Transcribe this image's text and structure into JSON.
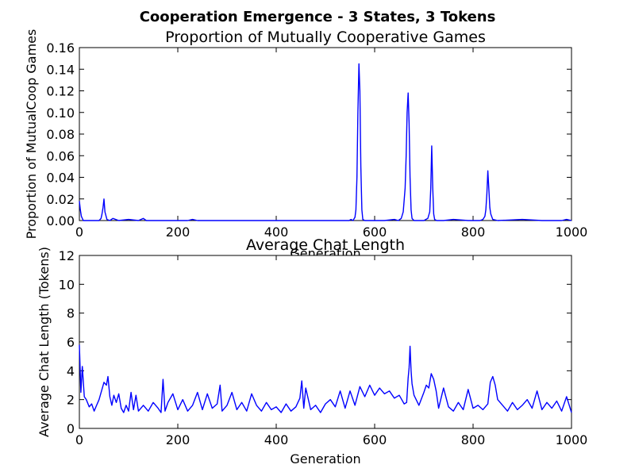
{
  "suptitle": "Cooperation Emergence - 3 States, 3 Tokens",
  "chart_data": [
    {
      "type": "line",
      "title": "Proportion of Mutually Cooperative Games",
      "xlabel": "Generation",
      "ylabel": "Proportion of MutualCoop Games",
      "xlim": [
        0,
        1000
      ],
      "ylim": [
        0,
        0.16
      ],
      "xticks": [
        "0",
        "200",
        "400",
        "600",
        "800",
        "1000"
      ],
      "yticks": [
        "0.00",
        "0.02",
        "0.04",
        "0.06",
        "0.08",
        "0.10",
        "0.12",
        "0.14",
        "0.16"
      ],
      "grid": false,
      "color": "#0000ff",
      "series": [
        {
          "x": [
            0,
            2,
            4,
            6,
            8,
            10,
            20,
            40,
            44,
            46,
            48,
            50,
            52,
            56,
            62,
            68,
            80,
            100,
            120,
            130,
            136,
            150,
            180,
            200,
            220,
            230,
            240,
            300,
            330,
            400,
            500,
            540,
            548,
            552,
            556,
            560,
            562,
            564,
            566,
            568,
            570,
            572,
            574,
            576,
            580,
            600,
            620,
            640,
            648,
            654,
            658,
            662,
            664,
            666,
            668,
            670,
            672,
            674,
            676,
            680,
            690,
            700,
            704,
            708,
            712,
            714,
            716,
            718,
            720,
            722,
            726,
            740,
            760,
            790,
            800,
            814,
            820,
            824,
            826,
            828,
            830,
            832,
            834,
            836,
            840,
            850,
            900,
            940,
            960,
            980,
            990,
            1000
          ],
          "y": [
            0.018,
            0.01,
            0.004,
            0.002,
            0.0,
            0.0,
            0.0,
            0.0,
            0.002,
            0.006,
            0.012,
            0.02,
            0.008,
            0.001,
            0.0,
            0.002,
            0.0,
            0.001,
            0.0,
            0.002,
            0.0,
            0.0,
            0.0,
            0.0,
            0.0,
            0.001,
            0.0,
            0.0,
            0.0,
            0.0,
            0.0,
            0.0,
            0.0,
            0.001,
            0.0,
            0.003,
            0.01,
            0.04,
            0.1,
            0.145,
            0.12,
            0.05,
            0.01,
            0.001,
            0.0,
            0.0,
            0.0,
            0.001,
            0.0,
            0.002,
            0.008,
            0.03,
            0.06,
            0.1,
            0.118,
            0.09,
            0.04,
            0.01,
            0.002,
            0.0,
            0.0,
            0.0,
            0.001,
            0.002,
            0.008,
            0.03,
            0.069,
            0.03,
            0.006,
            0.001,
            0.0,
            0.0,
            0.001,
            0.0,
            0.0,
            0.0,
            0.001,
            0.004,
            0.01,
            0.025,
            0.046,
            0.03,
            0.012,
            0.006,
            0.001,
            0.0,
            0.001,
            0.0,
            0.0,
            0.0,
            0.001,
            0.0
          ]
        }
      ]
    },
    {
      "type": "line",
      "title": "Average Chat Length",
      "xlabel": "Generation",
      "ylabel": "Average Chat Length (Tokens)",
      "xlim": [
        0,
        1000
      ],
      "ylim": [
        0,
        12
      ],
      "xticks": [
        "0",
        "200",
        "400",
        "600",
        "800",
        "1000"
      ],
      "yticks": [
        "0",
        "2",
        "4",
        "6",
        "8",
        "10",
        "12"
      ],
      "grid": false,
      "color": "#0000ff",
      "series": [
        {
          "x": [
            0,
            3,
            6,
            10,
            14,
            20,
            25,
            30,
            35,
            40,
            45,
            50,
            55,
            58,
            62,
            66,
            70,
            75,
            80,
            85,
            90,
            95,
            100,
            105,
            110,
            115,
            120,
            130,
            140,
            150,
            160,
            166,
            170,
            174,
            180,
            190,
            200,
            210,
            220,
            230,
            240,
            250,
            260,
            270,
            280,
            286,
            290,
            300,
            310,
            320,
            330,
            340,
            350,
            360,
            370,
            380,
            390,
            400,
            410,
            420,
            430,
            440,
            448,
            452,
            456,
            460,
            470,
            480,
            490,
            500,
            510,
            520,
            530,
            540,
            550,
            560,
            570,
            580,
            590,
            600,
            610,
            620,
            630,
            640,
            650,
            660,
            665,
            668,
            670,
            672,
            674,
            676,
            680,
            690,
            700,
            705,
            710,
            715,
            720,
            725,
            730,
            740,
            750,
            760,
            770,
            780,
            790,
            800,
            810,
            820,
            830,
            835,
            840,
            845,
            850,
            860,
            870,
            880,
            890,
            900,
            910,
            920,
            930,
            940,
            950,
            960,
            970,
            980,
            990,
            1000
          ],
          "y": [
            5.8,
            2.5,
            4.3,
            2.2,
            2.0,
            1.5,
            1.7,
            1.2,
            1.6,
            2.0,
            2.6,
            3.2,
            3.0,
            3.6,
            2.2,
            1.6,
            2.3,
            1.8,
            2.4,
            1.4,
            1.1,
            1.6,
            1.2,
            2.5,
            1.3,
            2.3,
            1.2,
            1.6,
            1.2,
            1.8,
            1.4,
            1.1,
            3.4,
            1.2,
            1.8,
            2.4,
            1.3,
            2.0,
            1.2,
            1.6,
            2.5,
            1.3,
            2.4,
            1.4,
            1.7,
            3.0,
            1.2,
            1.6,
            2.5,
            1.3,
            1.8,
            1.2,
            2.4,
            1.6,
            1.2,
            1.8,
            1.3,
            1.5,
            1.1,
            1.7,
            1.2,
            1.5,
            2.1,
            3.3,
            1.4,
            2.8,
            1.3,
            1.6,
            1.1,
            1.7,
            2.0,
            1.5,
            2.6,
            1.4,
            2.6,
            1.6,
            2.9,
            2.2,
            3.0,
            2.3,
            2.8,
            2.4,
            2.6,
            2.1,
            2.3,
            1.7,
            1.8,
            3.5,
            4.2,
            5.7,
            4.0,
            3.1,
            2.3,
            1.6,
            2.5,
            3.0,
            2.8,
            3.8,
            3.4,
            2.6,
            1.4,
            2.8,
            1.5,
            1.2,
            1.8,
            1.3,
            2.7,
            1.4,
            1.6,
            1.3,
            1.7,
            3.2,
            3.6,
            3.0,
            2.0,
            1.6,
            1.2,
            1.8,
            1.3,
            1.6,
            2.0,
            1.4,
            2.6,
            1.3,
            1.8,
            1.4,
            1.9,
            1.2,
            2.2,
            1.1
          ]
        }
      ]
    }
  ]
}
